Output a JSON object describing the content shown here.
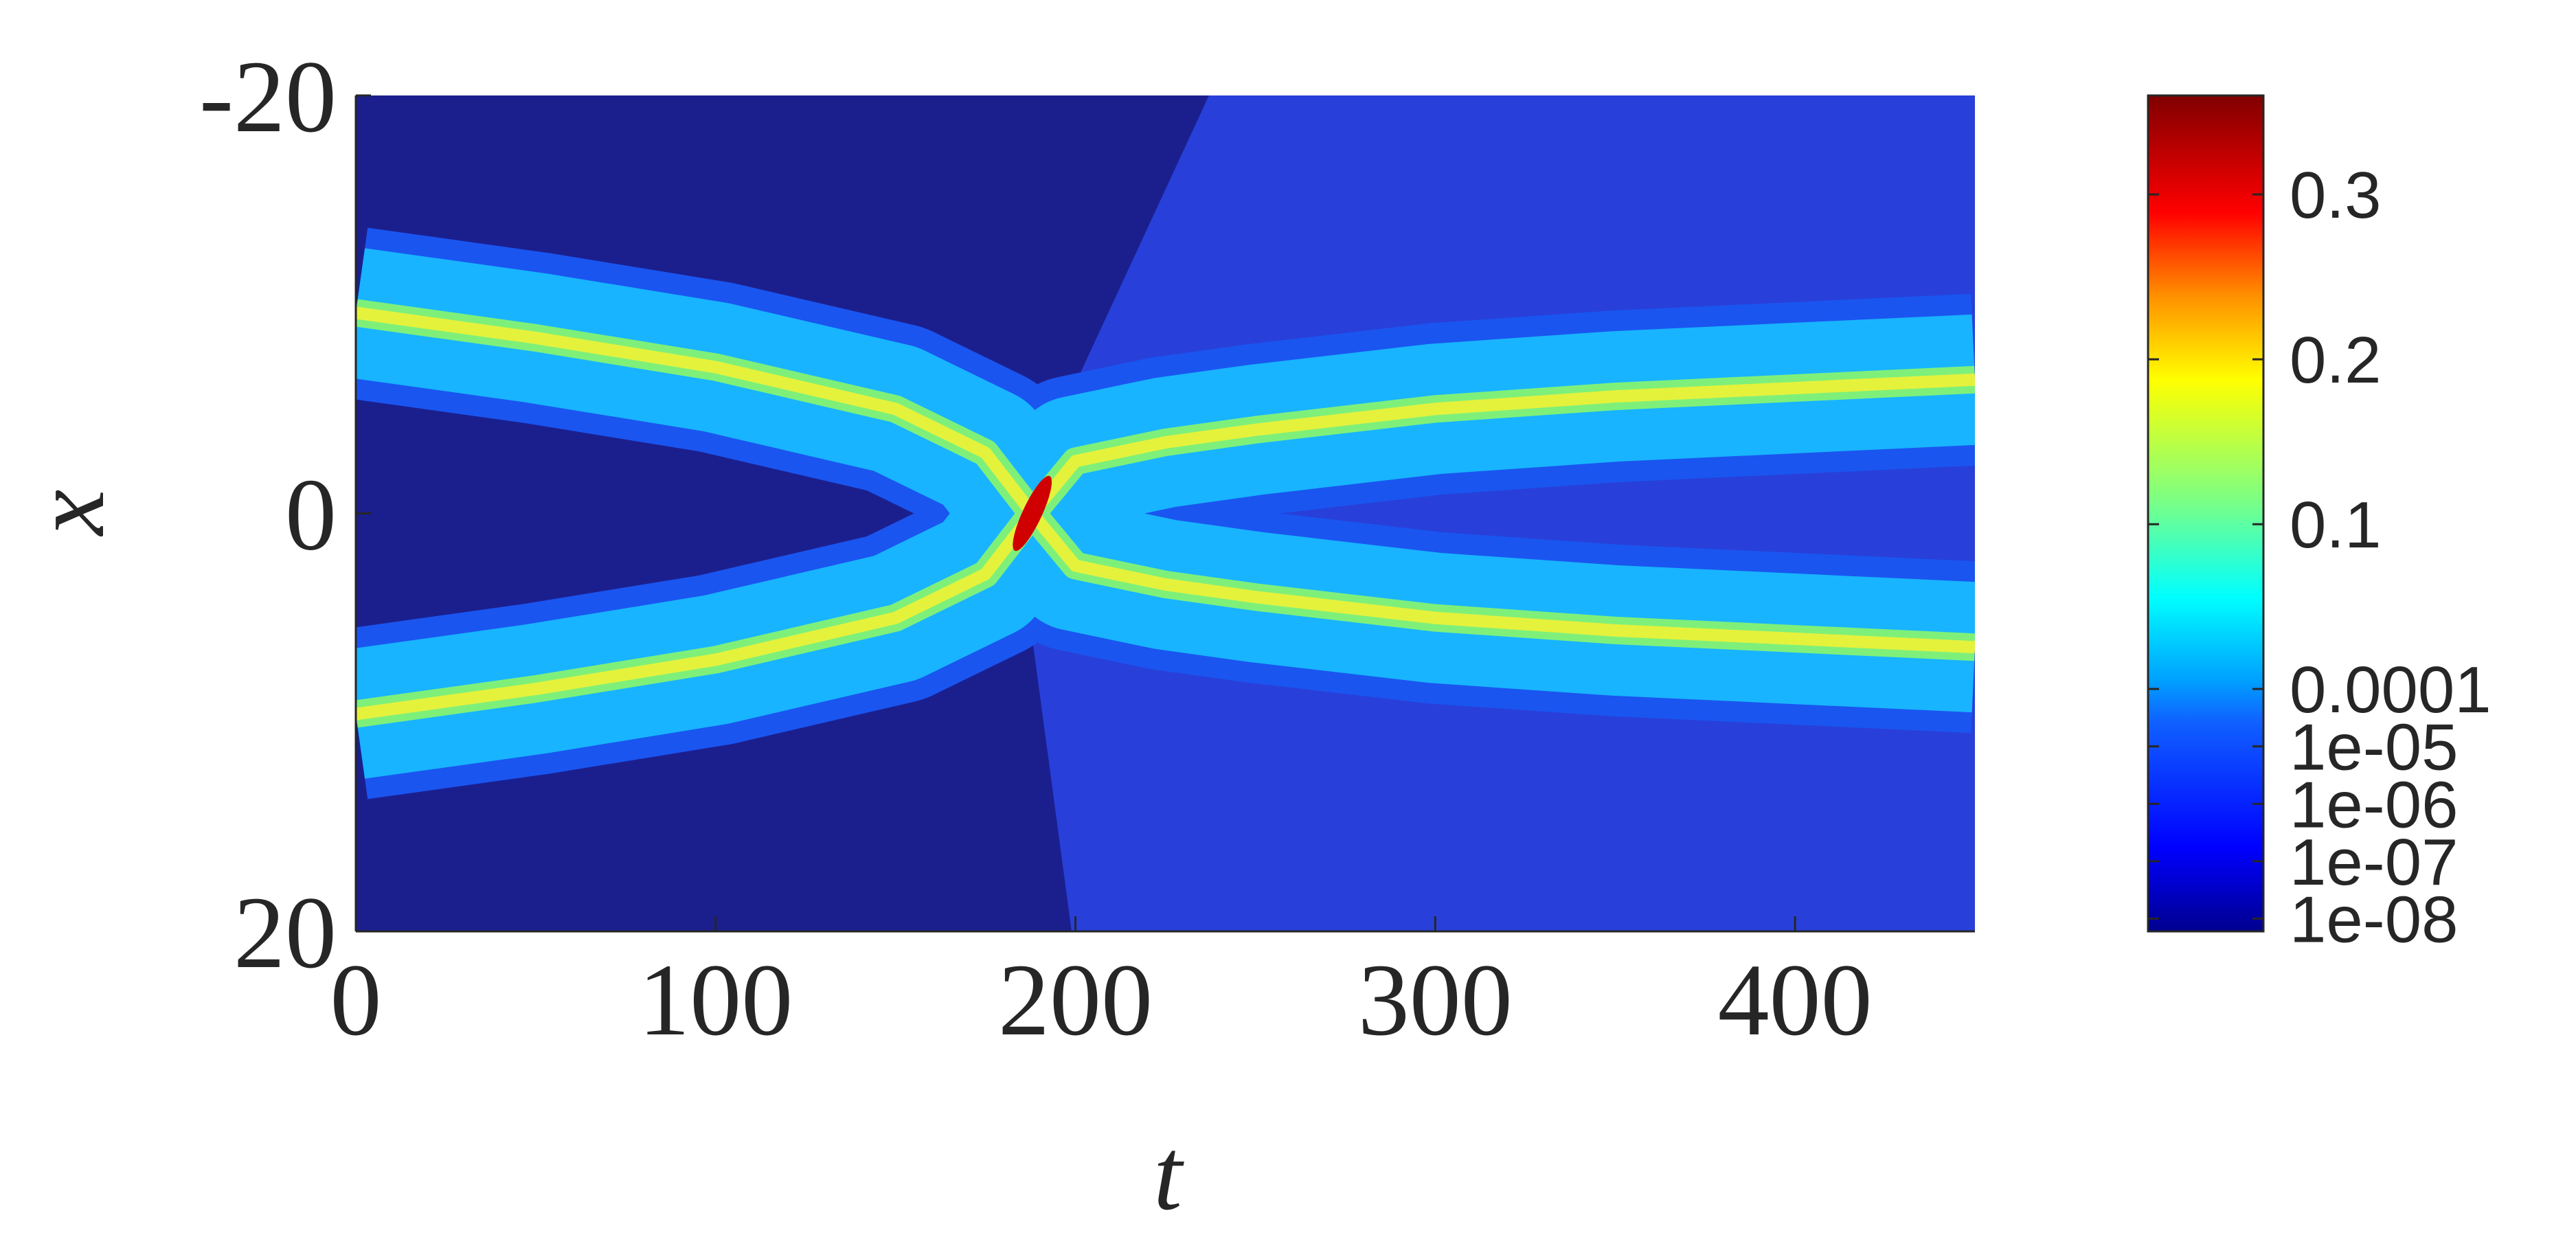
{
  "chart_data": {
    "type": "heatmap",
    "xlabel": "t",
    "ylabel": "x",
    "xlim": [
      0,
      450
    ],
    "xticks": [
      0,
      100,
      200,
      300,
      400
    ],
    "ylim": [
      -20,
      20
    ],
    "y_reversed": true,
    "yticks": [
      -20,
      0,
      20
    ],
    "t": [
      0,
      50,
      100,
      150,
      175,
      188,
      200,
      225,
      250,
      300,
      350,
      400,
      450
    ],
    "tracks": [
      {
        "x": [
          -9.6,
          -8.4,
          -7.0,
          -5.0,
          -2.9,
          0,
          -2.5,
          -3.4,
          -4.0,
          -5.0,
          -5.6,
          -6.0,
          -6.4
        ]
      },
      {
        "x": [
          9.6,
          8.4,
          7.0,
          5.0,
          2.9,
          0,
          2.5,
          3.4,
          4.0,
          5.0,
          5.6,
          6.0,
          6.4
        ]
      }
    ],
    "colorbar": {
      "lim": [
        6e-09,
        0.36
      ],
      "scale": "symlog",
      "linthresh": 0.0001,
      "ticks": [
        0.3,
        0.2,
        0.1,
        0.0001,
        {
          "value": 1e-05,
          "label": "1e-05"
        },
        {
          "value": 1e-06,
          "label": "1e-06"
        },
        {
          "value": 1e-07,
          "label": "1e-07"
        },
        {
          "value": 1e-08,
          "label": "1e-08"
        }
      ]
    }
  }
}
